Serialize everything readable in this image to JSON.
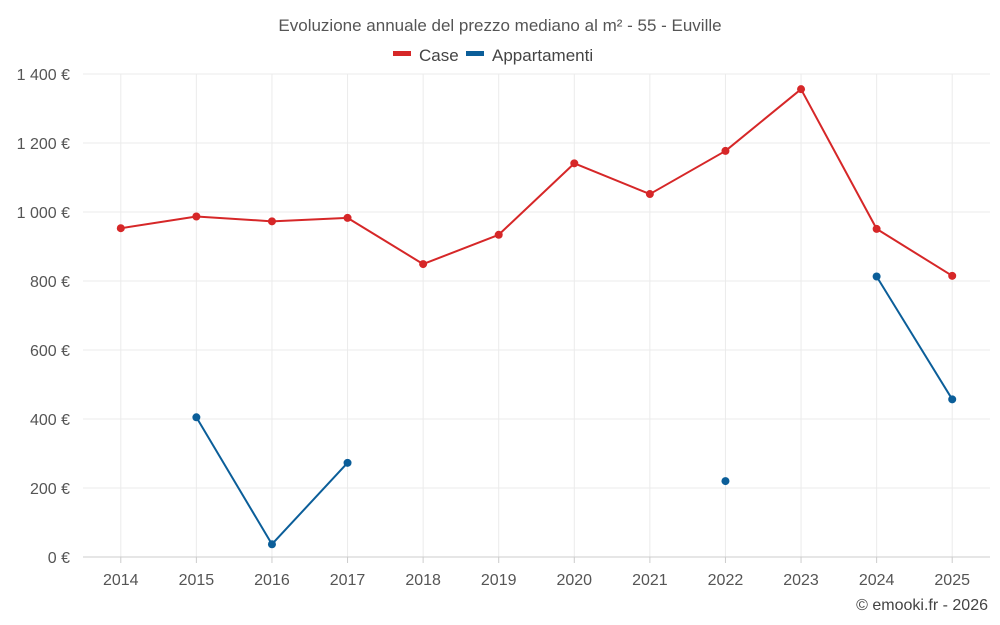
{
  "chart_data": {
    "type": "line",
    "title": "Evoluzione annuale del prezzo mediano al m² - 55 - Euville",
    "categories": [
      "2014",
      "2015",
      "2016",
      "2017",
      "2018",
      "2019",
      "2020",
      "2021",
      "2022",
      "2023",
      "2024",
      "2025"
    ],
    "series": [
      {
        "name": "Case",
        "color": "#d62728",
        "values": [
          953,
          987,
          973,
          983,
          849,
          934,
          1141,
          1052,
          1177,
          1356,
          951,
          815
        ]
      },
      {
        "name": "Appartamenti",
        "color": "#0b5e99",
        "values": [
          null,
          405,
          37,
          273,
          null,
          null,
          null,
          null,
          220,
          null,
          813,
          457
        ]
      }
    ],
    "ylim": [
      0,
      1400
    ],
    "yticks": [
      0,
      200,
      400,
      600,
      800,
      1000,
      1200,
      1400
    ],
    "ytick_labels": [
      "0 €",
      "200 €",
      "400 €",
      "600 €",
      "800 €",
      "1 000 €",
      "1 200 €",
      "1 400 €"
    ],
    "xlabel": "",
    "ylabel": "",
    "legend_position": "top-center",
    "grid": true,
    "credit": "© emooki.fr - 2026"
  }
}
